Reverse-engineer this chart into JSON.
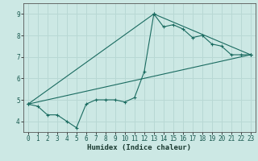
{
  "xlabel": "Humidex (Indice chaleur)",
  "background_color": "#cce8e4",
  "grid_color": "#b8d8d4",
  "line_color": "#1a6b60",
  "xlim": [
    -0.5,
    23.5
  ],
  "ylim": [
    3.5,
    9.5
  ],
  "xticks": [
    0,
    1,
    2,
    3,
    4,
    5,
    6,
    7,
    8,
    9,
    10,
    11,
    12,
    13,
    14,
    15,
    16,
    17,
    18,
    19,
    20,
    21,
    22,
    23
  ],
  "yticks": [
    4,
    5,
    6,
    7,
    8,
    9
  ],
  "series": [
    {
      "x": [
        0,
        1,
        2,
        3,
        4,
        5,
        6,
        7,
        8,
        9,
        10,
        11,
        12,
        13,
        14,
        15,
        16,
        17,
        18,
        19,
        20,
        21,
        22,
        23
      ],
      "y": [
        4.8,
        4.7,
        4.3,
        4.3,
        4.0,
        3.7,
        4.8,
        5.0,
        5.0,
        5.0,
        4.9,
        5.1,
        6.3,
        9.0,
        8.4,
        8.5,
        8.3,
        7.9,
        8.0,
        7.6,
        7.5,
        7.1,
        7.1,
        7.1
      ]
    },
    {
      "x": [
        0,
        23
      ],
      "y": [
        4.8,
        7.1
      ]
    },
    {
      "x": [
        0,
        13,
        23
      ],
      "y": [
        4.8,
        9.0,
        7.1
      ]
    }
  ]
}
